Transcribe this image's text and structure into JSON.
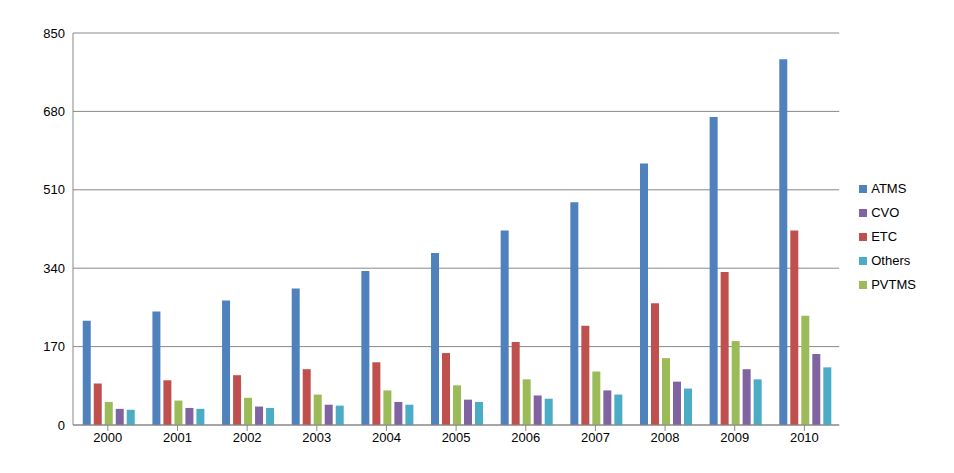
{
  "chart_data": {
    "type": "bar",
    "categories": [
      "2000",
      "2001",
      "2002",
      "2003",
      "2004",
      "2005",
      "2006",
      "2007",
      "2008",
      "2009",
      "2010"
    ],
    "series": [
      {
        "name": "ATMS",
        "color": "#4F81BD",
        "values": [
          226,
          246,
          270,
          296,
          334,
          373,
          422,
          483,
          567,
          668,
          793
        ]
      },
      {
        "name": "ETC",
        "color": "#C0504D",
        "values": [
          90,
          97,
          108,
          121,
          136,
          156,
          180,
          215,
          264,
          332,
          422
        ]
      },
      {
        "name": "PVTMS",
        "color": "#9BBB59",
        "values": [
          50,
          53,
          59,
          66,
          75,
          86,
          99,
          116,
          145,
          182,
          237
        ]
      },
      {
        "name": "CVO",
        "color": "#8064A2",
        "values": [
          35,
          37,
          40,
          44,
          50,
          55,
          64,
          75,
          94,
          121,
          154
        ]
      },
      {
        "name": "Others",
        "color": "#4BACC6",
        "values": [
          33,
          35,
          37,
          42,
          44,
          50,
          57,
          66,
          79,
          99,
          125
        ]
      }
    ],
    "ylim": [
      0,
      850
    ],
    "yticks": [
      0,
      170,
      340,
      510,
      680,
      850
    ],
    "grid": true,
    "legend": "right"
  }
}
